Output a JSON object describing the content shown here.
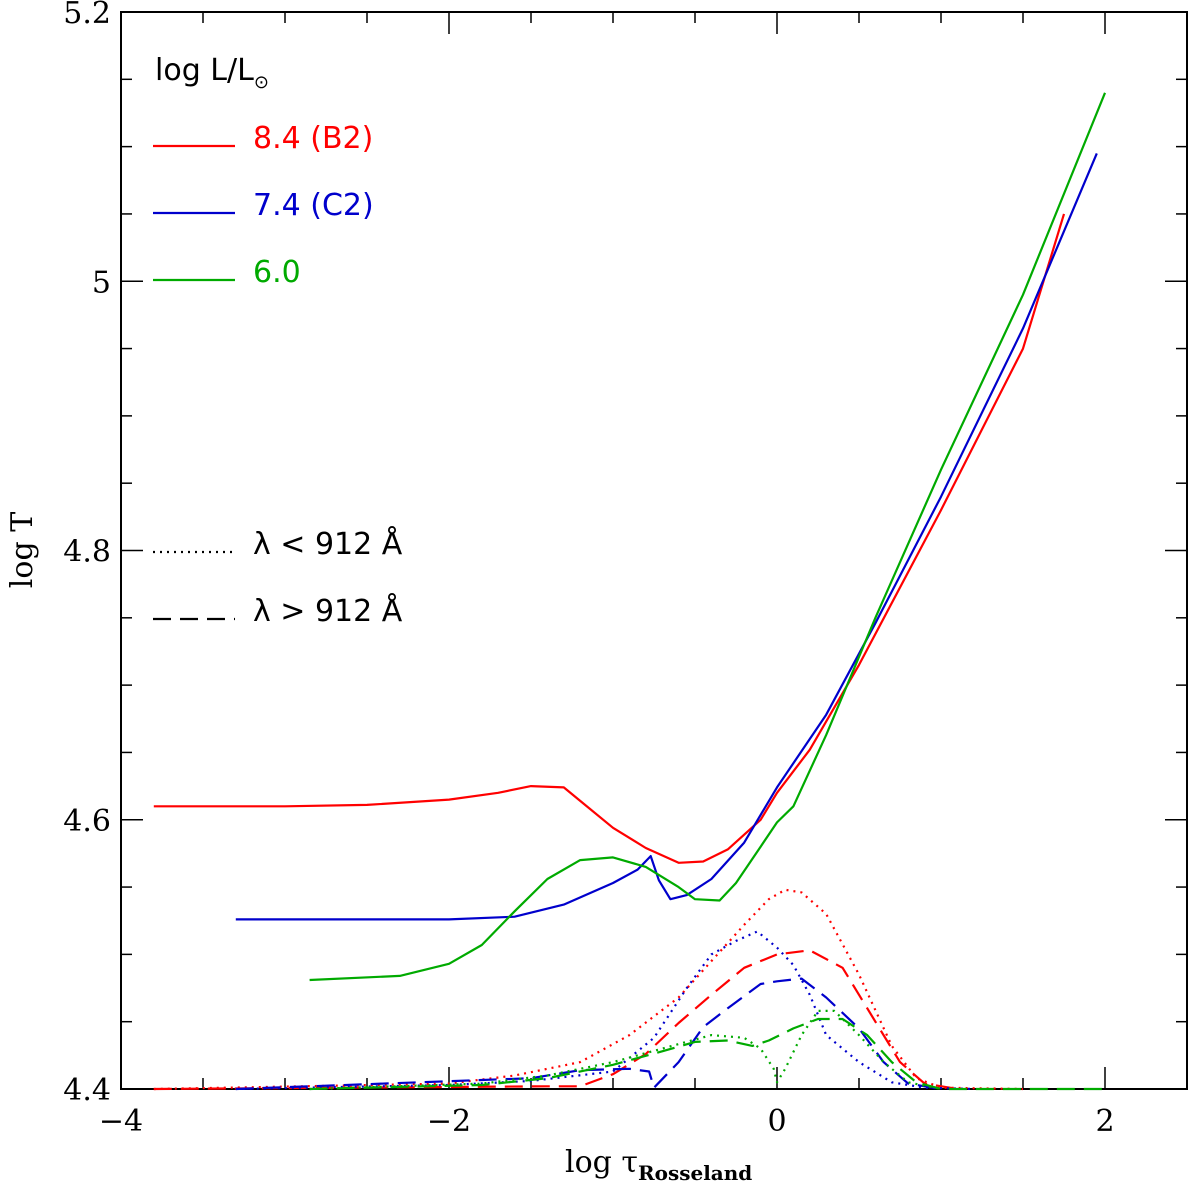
{
  "chart_data": {
    "type": "line",
    "title": "",
    "xlabel": "log τ",
    "xlabel_sub": "Rosseland",
    "ylabel": "log T",
    "xlim": [
      -4,
      2.5
    ],
    "ylim": [
      4.4,
      5.2
    ],
    "x_major_ticks": [
      -4,
      -2,
      0,
      2
    ],
    "y_major_ticks": [
      4.4,
      4.6,
      4.8,
      5,
      5.2
    ],
    "x_tick_labels": [
      "−4",
      "−2",
      "0",
      "2"
    ],
    "y_tick_labels": [
      "4.4",
      "4.6",
      "4.8",
      "5",
      "5.2"
    ],
    "legend_title": "log L/L",
    "legend_title_symbol": "⊙",
    "style_legend": [
      {
        "label": "λ < 912 Å",
        "dash": "dotted"
      },
      {
        "label": "λ > 912 Å",
        "dash": "dashed"
      }
    ],
    "series": [
      {
        "name": "8.4 (B2)",
        "color": "#ff0000",
        "dash": "solid",
        "points": [
          [
            -3.8,
            4.61
          ],
          [
            -3.0,
            4.61
          ],
          [
            -2.5,
            4.611
          ],
          [
            -2.0,
            4.615
          ],
          [
            -1.7,
            4.62
          ],
          [
            -1.5,
            4.625
          ],
          [
            -1.3,
            4.624
          ],
          [
            -1.2,
            4.614
          ],
          [
            -1.0,
            4.594
          ],
          [
            -0.8,
            4.579
          ],
          [
            -0.6,
            4.568
          ],
          [
            -0.45,
            4.569
          ],
          [
            -0.3,
            4.578
          ],
          [
            -0.1,
            4.6
          ],
          [
            0.0,
            4.62
          ],
          [
            0.2,
            4.652
          ],
          [
            0.5,
            4.715
          ],
          [
            1.0,
            4.83
          ],
          [
            1.5,
            4.95
          ],
          [
            1.75,
            5.05
          ]
        ]
      },
      {
        "name": "7.4 (C2)",
        "color": "#0000cc",
        "dash": "solid",
        "points": [
          [
            -3.3,
            4.526
          ],
          [
            -2.0,
            4.526
          ],
          [
            -1.6,
            4.528
          ],
          [
            -1.3,
            4.537
          ],
          [
            -1.0,
            4.553
          ],
          [
            -0.85,
            4.563
          ],
          [
            -0.77,
            4.573
          ],
          [
            -0.72,
            4.555
          ],
          [
            -0.65,
            4.541
          ],
          [
            -0.55,
            4.544
          ],
          [
            -0.4,
            4.556
          ],
          [
            -0.2,
            4.583
          ],
          [
            0.0,
            4.624
          ],
          [
            0.3,
            4.678
          ],
          [
            0.6,
            4.746
          ],
          [
            1.0,
            4.84
          ],
          [
            1.5,
            4.965
          ],
          [
            1.95,
            5.095
          ]
        ]
      },
      {
        "name": "6.0",
        "color": "#00aa00",
        "dash": "solid",
        "points": [
          [
            -2.85,
            4.481
          ],
          [
            -2.3,
            4.484
          ],
          [
            -2.0,
            4.493
          ],
          [
            -1.8,
            4.507
          ],
          [
            -1.6,
            4.532
          ],
          [
            -1.4,
            4.556
          ],
          [
            -1.2,
            4.57
          ],
          [
            -1.0,
            4.572
          ],
          [
            -0.8,
            4.565
          ],
          [
            -0.6,
            4.55
          ],
          [
            -0.5,
            4.541
          ],
          [
            -0.35,
            4.54
          ],
          [
            -0.25,
            4.553
          ],
          [
            -0.1,
            4.58
          ],
          [
            0.0,
            4.598
          ],
          [
            0.1,
            4.61
          ],
          [
            0.3,
            4.663
          ],
          [
            0.6,
            4.75
          ],
          [
            1.0,
            4.86
          ],
          [
            1.5,
            4.99
          ],
          [
            2.0,
            5.14
          ]
        ]
      },
      {
        "name": "8.4 (B2) λ < 912 Å",
        "color": "#ff0000",
        "dash": "dotted",
        "points": [
          [
            -3.8,
            4.4
          ],
          [
            -2.0,
            4.404
          ],
          [
            -1.6,
            4.41
          ],
          [
            -1.2,
            4.42
          ],
          [
            -0.9,
            4.44
          ],
          [
            -0.6,
            4.468
          ],
          [
            -0.4,
            4.495
          ],
          [
            -0.2,
            4.522
          ],
          [
            -0.05,
            4.541
          ],
          [
            0.05,
            4.548
          ],
          [
            0.15,
            4.546
          ],
          [
            0.3,
            4.53
          ],
          [
            0.5,
            4.485
          ],
          [
            0.7,
            4.432
          ],
          [
            0.85,
            4.408
          ],
          [
            1.0,
            4.401
          ],
          [
            1.5,
            4.4
          ]
        ]
      },
      {
        "name": "8.4 (B2) λ > 912 Å",
        "color": "#ff0000",
        "dash": "dashed",
        "points": [
          [
            -3.8,
            4.4
          ],
          [
            -1.4,
            4.402
          ],
          [
            -1.2,
            4.402
          ],
          [
            -1.0,
            4.411
          ],
          [
            -0.8,
            4.426
          ],
          [
            -0.6,
            4.449
          ],
          [
            -0.4,
            4.47
          ],
          [
            -0.2,
            4.49
          ],
          [
            0.0,
            4.5
          ],
          [
            0.2,
            4.503
          ],
          [
            0.4,
            4.49
          ],
          [
            0.6,
            4.45
          ],
          [
            0.75,
            4.42
          ],
          [
            0.9,
            4.404
          ],
          [
            1.1,
            4.4
          ]
        ]
      },
      {
        "name": "7.4 (C2) λ < 912 Å",
        "color": "#0000cc",
        "dash": "dotted",
        "points": [
          [
            -3.3,
            4.4
          ],
          [
            -2.0,
            4.403
          ],
          [
            -1.5,
            4.406
          ],
          [
            -1.0,
            4.413
          ],
          [
            -0.75,
            4.438
          ],
          [
            -0.55,
            4.475
          ],
          [
            -0.4,
            4.5
          ],
          [
            -0.25,
            4.51
          ],
          [
            -0.12,
            4.517
          ],
          [
            0.0,
            4.505
          ],
          [
            0.1,
            4.492
          ],
          [
            0.2,
            4.47
          ],
          [
            0.3,
            4.44
          ],
          [
            0.5,
            4.42
          ],
          [
            0.7,
            4.405
          ],
          [
            0.9,
            4.401
          ],
          [
            1.2,
            4.4
          ]
        ]
      },
      {
        "name": "7.4 (C2) λ > 912 Å",
        "color": "#0000cc",
        "dash": "dashed",
        "points": [
          [
            -3.3,
            4.4
          ],
          [
            -1.5,
            4.408
          ],
          [
            -1.2,
            4.414
          ],
          [
            -0.9,
            4.415
          ],
          [
            -0.78,
            4.413
          ],
          [
            -0.75,
            4.401
          ],
          [
            -0.6,
            4.42
          ],
          [
            -0.45,
            4.446
          ],
          [
            -0.3,
            4.46
          ],
          [
            -0.1,
            4.478
          ],
          [
            0.0,
            4.48
          ],
          [
            0.15,
            4.482
          ],
          [
            0.3,
            4.468
          ],
          [
            0.5,
            4.445
          ],
          [
            0.65,
            4.42
          ],
          [
            0.8,
            4.404
          ],
          [
            1.0,
            4.4
          ]
        ]
      },
      {
        "name": "6.0 λ < 912 Å",
        "color": "#00aa00",
        "dash": "dotted",
        "points": [
          [
            -2.85,
            4.4
          ],
          [
            -1.8,
            4.404
          ],
          [
            -1.4,
            4.41
          ],
          [
            -1.0,
            4.42
          ],
          [
            -0.7,
            4.43
          ],
          [
            -0.4,
            4.44
          ],
          [
            -0.2,
            4.438
          ],
          [
            -0.1,
            4.43
          ],
          [
            -0.02,
            4.415
          ],
          [
            0.0,
            4.405
          ],
          [
            0.05,
            4.415
          ],
          [
            0.15,
            4.44
          ],
          [
            0.25,
            4.458
          ],
          [
            0.35,
            4.458
          ],
          [
            0.5,
            4.44
          ],
          [
            0.65,
            4.42
          ],
          [
            0.8,
            4.405
          ],
          [
            1.0,
            4.4
          ]
        ]
      },
      {
        "name": "6.0 λ > 912 Å",
        "color": "#00aa00",
        "dash": "dashed",
        "points": [
          [
            -2.85,
            4.4
          ],
          [
            -1.8,
            4.403
          ],
          [
            -1.4,
            4.408
          ],
          [
            -1.0,
            4.418
          ],
          [
            -0.7,
            4.428
          ],
          [
            -0.5,
            4.435
          ],
          [
            -0.3,
            4.436
          ],
          [
            -0.15,
            4.432
          ],
          [
            -0.05,
            4.436
          ],
          [
            0.1,
            4.445
          ],
          [
            0.25,
            4.452
          ],
          [
            0.4,
            4.452
          ],
          [
            0.55,
            4.44
          ],
          [
            0.7,
            4.42
          ],
          [
            0.85,
            4.405
          ],
          [
            1.0,
            4.4
          ],
          [
            2.0,
            4.4
          ]
        ]
      }
    ]
  }
}
